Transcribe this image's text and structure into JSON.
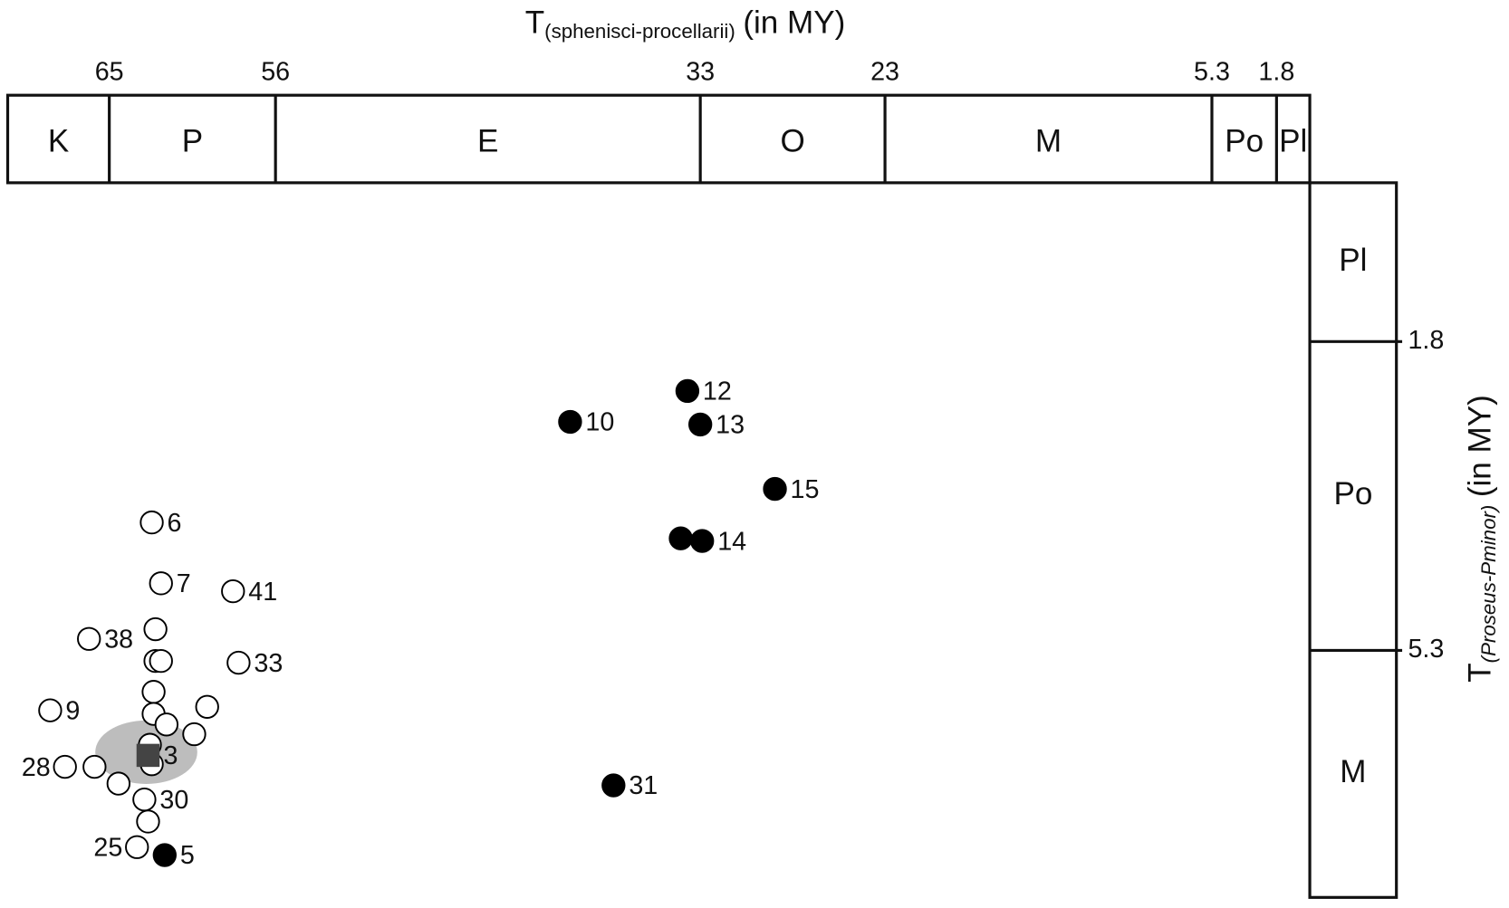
{
  "chart_data": {
    "type": "scatter",
    "x_label": {
      "main": "T",
      "sub": "(sphenisci-procellarii)",
      "unit": "(in MY)"
    },
    "y_label": {
      "main": "T",
      "sub": "(Proseus-Pminor)",
      "unit": "(in MY)"
    },
    "xlim": [
      70.5,
      0
    ],
    "xticks": [
      65,
      56,
      33,
      23,
      5.3,
      1.8
    ],
    "x_periods": [
      "K",
      "P",
      "E",
      "O",
      "M",
      "Po",
      "Pl"
    ],
    "ylim": [
      0,
      8.1
    ],
    "yticks": [
      1.8,
      5.3
    ],
    "y_periods": [
      "Pl",
      "Po",
      "M"
    ],
    "series": [
      {
        "marker": "filled-circle",
        "color": "#000000",
        "x": [
          33.7,
          40.05,
          33.0,
          28.96,
          34.06,
          32.9,
          37.7,
          62.0
        ],
        "y": [
          2.36,
          2.71,
          2.74,
          3.47,
          4.03,
          4.06,
          6.83,
          7.62
        ],
        "labels": [
          "12",
          "10",
          "13",
          "15",
          null,
          "14",
          "31",
          "5"
        ]
      },
      {
        "marker": "open-circle",
        "color": "#000000",
        "x": [
          62.7,
          62.2,
          58.3,
          66.1,
          58.0,
          68.2,
          67.4,
          63.5,
          62.5,
          62.5,
          62.2,
          62.6,
          62.6,
          59.7,
          60.4,
          61.9,
          65.8,
          64.5,
          63.1,
          62.9,
          62.7,
          62.8
        ],
        "y": [
          3.85,
          4.54,
          4.63,
          5.17,
          5.44,
          5.98,
          6.62,
          7.53,
          5.06,
          5.42,
          5.42,
          5.77,
          6.02,
          5.94,
          6.25,
          6.14,
          6.62,
          6.81,
          6.99,
          7.24,
          6.59,
          6.37
        ],
        "labels": [
          "6",
          "7",
          "41",
          "38",
          "33",
          "9",
          "28",
          "25",
          null,
          null,
          null,
          null,
          null,
          null,
          null,
          null,
          null,
          null,
          "30",
          null,
          null,
          null
        ],
        "label_sides": [
          "right",
          "right",
          "right",
          "right",
          "right",
          "right",
          "left",
          "left",
          "right",
          "right",
          "right",
          "right",
          "right",
          "right",
          "right",
          "right",
          "right",
          "right",
          "right",
          "right",
          "right",
          "right"
        ]
      },
      {
        "marker": "square",
        "color": "#444444",
        "x": [
          62.9
        ],
        "y": [
          6.49
        ],
        "labels": [
          "3"
        ]
      }
    ]
  }
}
